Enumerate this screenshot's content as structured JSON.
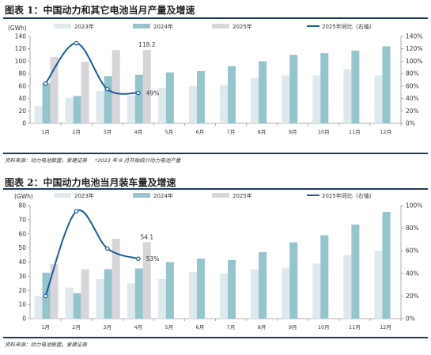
{
  "colors": {
    "c2023": "#dde9ed",
    "c2024": "#94c4cc",
    "c2025": "#d8d5da",
    "line": "#1c5d99",
    "axis": "#9a9a9a",
    "rule": "#1f3a5a"
  },
  "figures": [
    {
      "title": "图表 1：中国动力和其它电池当月产量及增速",
      "notes": [
        "资料来源：动力电池联盟，爱建证券",
        "*2023 年 8 月开始统计动力电池产量"
      ],
      "chart_data": {
        "type": "bar",
        "categories": [
          "1月",
          "2月",
          "3月",
          "4月",
          "5月",
          "6月",
          "7月",
          "8月",
          "9月",
          "10月",
          "11月",
          "12月"
        ],
        "y_unit": "(GWh)",
        "ylim": [
          0,
          140
        ],
        "yticks": [
          0,
          20,
          40,
          60,
          80,
          100,
          120,
          140
        ],
        "y2lim": [
          0,
          140
        ],
        "y2ticks": [
          "0%",
          "20%",
          "40%",
          "60%",
          "80%",
          "100%",
          "120%",
          "140%"
        ],
        "series": [
          {
            "name": "2023年",
            "values": [
              28,
              41,
              52,
              45,
              57,
              60,
              62,
              73,
              77,
              77,
              87,
              77
            ]
          },
          {
            "name": "2024年",
            "values": [
              65,
              44,
              76,
              78,
              82,
              84,
              92,
              100,
              110,
              113,
              117,
              124
            ]
          },
          {
            "name": "2025年",
            "values": [
              107,
              99,
              118,
              118.2,
              null,
              null,
              null,
              null,
              null,
              null,
              null,
              null
            ]
          }
        ],
        "line": {
          "name": "2025年同比（右轴）",
          "values": [
            64,
            129,
            55,
            49
          ]
        },
        "annotations": {
          "bar_label": "118.2",
          "line_label": "49%"
        },
        "grid": false,
        "legend": "top"
      }
    },
    {
      "title": "图表 2：中国动力电池当月装车量及增速",
      "notes": [
        "资料来源：动力电池联盟，爱建证券"
      ],
      "chart_data": {
        "type": "bar",
        "categories": [
          "1月",
          "2月",
          "3月",
          "4月",
          "5月",
          "6月",
          "7月",
          "8月",
          "9月",
          "10月",
          "11月",
          "12月"
        ],
        "y_unit": "(GWh)",
        "ylim": [
          0,
          80
        ],
        "yticks": [
          0,
          10,
          20,
          30,
          40,
          50,
          60,
          70,
          80
        ],
        "y2lim": [
          0,
          100
        ],
        "y2ticks": [
          "0%",
          "20%",
          "40%",
          "60%",
          "80%",
          "100%"
        ],
        "series": [
          {
            "name": "2023年",
            "values": [
              16,
              22,
              28,
              25,
              28,
              33,
              32,
              35,
              36,
              39,
              45,
              48
            ]
          },
          {
            "name": "2024年",
            "values": [
              32.5,
              18,
              35,
              35.5,
              40,
              42.5,
              41.5,
              47,
              54,
              59,
              66.5,
              75.5
            ]
          },
          {
            "name": "2025年",
            "values": [
              38.5,
              35,
              56.5,
              54.1,
              null,
              null,
              null,
              null,
              null,
              null,
              null,
              null
            ]
          }
        ],
        "line": {
          "name": "2025年同比（右轴）",
          "values": [
            20,
            95,
            62,
            53
          ]
        },
        "annotations": {
          "bar_label": "54.1",
          "line_label": "53%"
        },
        "grid": false,
        "legend": "top"
      }
    }
  ]
}
